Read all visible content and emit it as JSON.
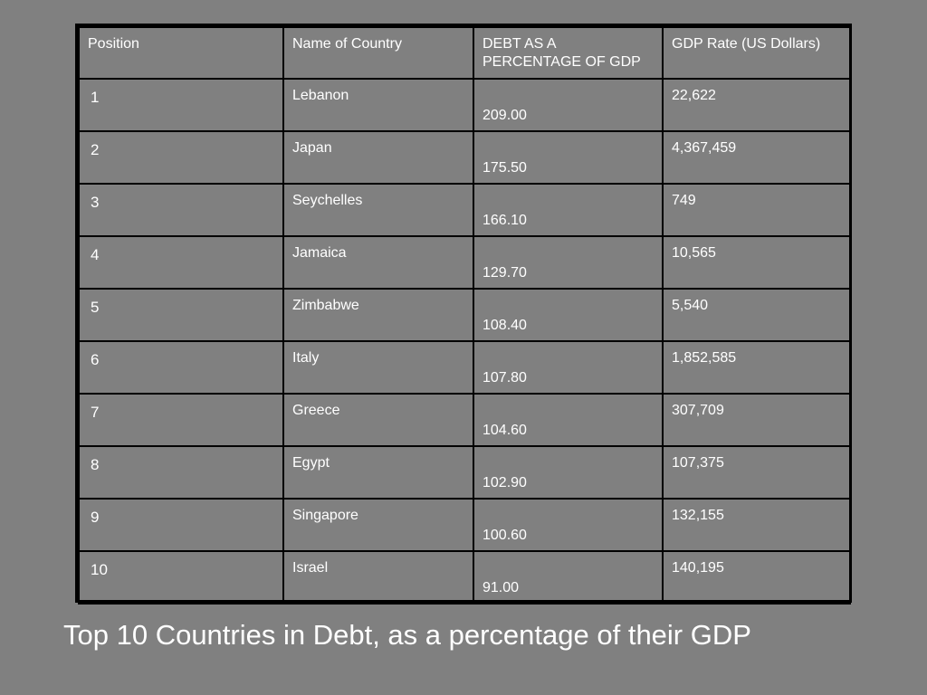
{
  "table": {
    "headers": [
      "Position",
      "Name of Country",
      "DEBT AS A PERCENTAGE OF GDP",
      "GDP Rate (US Dollars)"
    ],
    "rows": [
      {
        "position": "1",
        "country": "Lebanon",
        "debt": "209.00",
        "gdp": "22,622"
      },
      {
        "position": "2",
        "country": "Japan",
        "debt": "175.50",
        "gdp": "4,367,459"
      },
      {
        "position": "3",
        "country": "Seychelles",
        "debt": "166.10",
        "gdp": "749"
      },
      {
        "position": "4",
        "country": "Jamaica",
        "debt": "129.70",
        "gdp": "10,565"
      },
      {
        "position": "5",
        "country": "Zimbabwe",
        "debt": "108.40",
        "gdp": "5,540"
      },
      {
        "position": "6",
        "country": "Italy",
        "debt": "107.80",
        "gdp": "1,852,585"
      },
      {
        "position": "7",
        "country": "Greece",
        "debt": "104.60",
        "gdp": "307,709"
      },
      {
        "position": "8",
        "country": "Egypt",
        "debt": "102.90",
        "gdp": "107,375"
      },
      {
        "position": "9",
        "country": "Singapore",
        "debt": "100.60",
        "gdp": "132,155"
      },
      {
        "position": "10",
        "country": "Israel",
        "debt": "91.00",
        "gdp": "140,195"
      }
    ]
  },
  "caption": "Top 10 Countries in Debt, as a percentage of their GDP",
  "colors": {
    "background": "#808080",
    "text": "#ffffff",
    "border": "#000000"
  }
}
